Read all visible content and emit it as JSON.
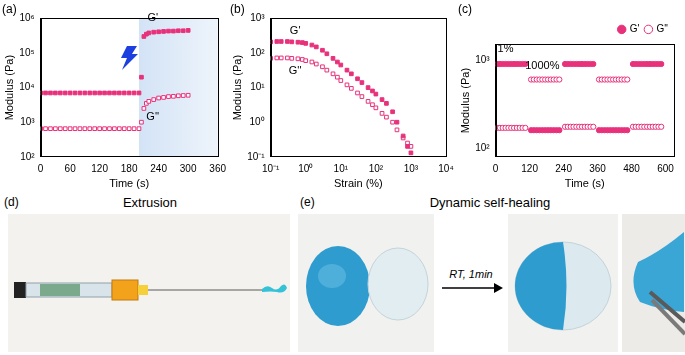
{
  "chart_data": [
    {
      "type": "scatter",
      "title": "(a)",
      "x_label": "Time (s)",
      "y_label": "Modulus (Pa)",
      "log": "y",
      "grid": false,
      "xlim": [
        0,
        360
      ],
      "xticks": [
        0,
        60,
        120,
        180,
        240,
        300,
        360
      ],
      "ylim": [
        100,
        1000000
      ],
      "yticks": [
        {
          "value": 100,
          "label": "10²"
        },
        {
          "value": 1000,
          "label": "10³"
        },
        {
          "value": 10000,
          "label": "10⁴"
        },
        {
          "value": 100000,
          "label": "10⁵"
        },
        {
          "value": 1000000,
          "label": "10⁶"
        }
      ],
      "highlight": {
        "x": [
          200,
          360
        ],
        "color": "#d3e3f6"
      },
      "x": [
        0,
        10,
        20,
        30,
        40,
        50,
        60,
        70,
        80,
        90,
        100,
        110,
        120,
        130,
        140,
        150,
        160,
        170,
        180,
        190,
        200,
        205,
        210,
        215,
        220,
        230,
        240,
        250,
        260,
        270,
        280,
        290,
        300
      ],
      "series": [
        {
          "name": "G'",
          "color": "#e8317b",
          "marker": "square",
          "label_at": [
            228,
            700000
          ],
          "values": [
            7000,
            7000,
            7000,
            7000,
            7000,
            7000,
            7000,
            7000,
            7000,
            7000,
            7000,
            7000,
            7000,
            7000,
            7000,
            7000,
            7000,
            7000,
            7000,
            7000,
            7000,
            20000,
            300000,
            350000,
            380000,
            400000,
            410000,
            420000,
            430000,
            430000,
            440000,
            440000,
            450000
          ]
        },
        {
          "name": "G''",
          "color": "#e8317b",
          "marker": "square-open",
          "label_at": [
            228,
            2000
          ],
          "values": [
            650,
            650,
            650,
            650,
            650,
            650,
            650,
            650,
            650,
            650,
            650,
            650,
            650,
            650,
            650,
            650,
            650,
            650,
            650,
            650,
            650,
            1000,
            2500,
            3500,
            4000,
            4500,
            5000,
            5200,
            5500,
            5600,
            5800,
            5900,
            6000
          ]
        }
      ]
    },
    {
      "type": "scatter",
      "title": "(b)",
      "x_label": "Strain (%)",
      "y_label": "Modulus (Pa)",
      "log": true,
      "grid": false,
      "xlim": [
        0.1,
        10000
      ],
      "xticks": [
        {
          "value": 0.1,
          "label": "10⁻¹"
        },
        {
          "value": 1,
          "label": "10⁰"
        },
        {
          "value": 10,
          "label": "10¹"
        },
        {
          "value": 100,
          "label": "10²"
        },
        {
          "value": 1000,
          "label": "10³"
        },
        {
          "value": 10000,
          "label": "10⁴"
        }
      ],
      "ylim": [
        0.1,
        1000
      ],
      "yticks": [
        {
          "value": 0.1,
          "label": "10⁻¹"
        },
        {
          "value": 1,
          "label": "10⁰"
        },
        {
          "value": 10,
          "label": "10¹"
        },
        {
          "value": 100,
          "label": "10²"
        },
        {
          "value": 1000,
          "label": "10³"
        }
      ],
      "x": [
        0.1,
        0.15,
        0.2,
        0.3,
        0.4,
        0.6,
        0.8,
        1,
        1.5,
        2,
        3,
        4,
        6,
        8,
        10,
        15,
        20,
        30,
        40,
        60,
        80,
        100,
        150,
        200,
        300,
        400,
        600,
        800,
        1000
      ],
      "series": [
        {
          "name": "G'",
          "color": "#e8317b",
          "marker": "square",
          "label_at": [
            0.5,
            300
          ],
          "values": [
            210,
            215,
            215,
            215,
            210,
            205,
            200,
            190,
            170,
            150,
            120,
            95,
            70,
            55,
            45,
            32,
            25,
            18,
            14,
            10,
            8,
            6.5,
            4.5,
            3.5,
            2,
            1,
            0.4,
            0.2,
            0.13
          ]
        },
        {
          "name": "G''",
          "color": "#e8317b",
          "marker": "square-open",
          "label_at": [
            0.5,
            45
          ],
          "values": [
            70,
            72,
            72,
            72,
            70,
            68,
            65,
            60,
            55,
            48,
            40,
            32,
            25,
            20,
            16,
            12,
            9.5,
            7,
            5.5,
            4,
            3.2,
            2.6,
            1.8,
            1.4,
            1,
            0.6,
            0.35,
            0.25,
            0.2
          ]
        }
      ]
    },
    {
      "type": "scatter",
      "title": "(c)",
      "x_label": "Time (s)",
      "y_label": "Modulus (Pa)",
      "log": "y",
      "grid": false,
      "legend": "top-right",
      "xlim": [
        0,
        630
      ],
      "xticks": [
        0,
        120,
        240,
        360,
        480,
        600
      ],
      "ylim": [
        80,
        1500
      ],
      "yticks": [
        {
          "value": 100,
          "label": "10²"
        },
        {
          "value": 1000,
          "label": "10³"
        }
      ],
      "annotations": [
        {
          "text": "1%",
          "x": 35,
          "y": 1150
        },
        {
          "text": "1000%",
          "x": 165,
          "y": 740
        }
      ],
      "x": [
        5,
        15,
        25,
        35,
        45,
        55,
        65,
        75,
        85,
        95,
        105,
        125,
        135,
        145,
        155,
        165,
        175,
        185,
        195,
        205,
        215,
        225,
        245,
        255,
        265,
        275,
        285,
        295,
        305,
        315,
        325,
        335,
        345,
        365,
        375,
        385,
        395,
        405,
        415,
        425,
        435,
        445,
        455,
        465,
        485,
        495,
        505,
        515,
        525,
        535,
        545,
        555,
        565,
        575,
        585
      ],
      "series": [
        {
          "name": "G'",
          "color": "#e8317b",
          "marker": "circle",
          "values": [
            900,
            900,
            900,
            900,
            900,
            900,
            900,
            900,
            900,
            900,
            900,
            160,
            160,
            160,
            160,
            160,
            160,
            160,
            160,
            160,
            160,
            160,
            900,
            900,
            900,
            900,
            900,
            900,
            900,
            900,
            900,
            900,
            900,
            160,
            160,
            160,
            160,
            160,
            160,
            160,
            160,
            160,
            160,
            160,
            900,
            900,
            900,
            900,
            900,
            900,
            900,
            900,
            900,
            900,
            900
          ]
        },
        {
          "name": "G''",
          "color": "#e8317b",
          "marker": "circle-open",
          "values": [
            170,
            170,
            170,
            170,
            170,
            170,
            170,
            170,
            170,
            170,
            170,
            600,
            600,
            600,
            600,
            600,
            600,
            600,
            600,
            600,
            600,
            600,
            175,
            175,
            175,
            175,
            175,
            175,
            175,
            175,
            175,
            175,
            175,
            600,
            600,
            600,
            600,
            600,
            600,
            600,
            600,
            600,
            600,
            600,
            175,
            175,
            175,
            175,
            175,
            175,
            175,
            175,
            175,
            175,
            175
          ]
        }
      ]
    }
  ],
  "panels": [
    {
      "label": "(d)",
      "title": "Extrusion"
    },
    {
      "label": "(e)",
      "title": "Dynamic self-healing",
      "arrow_text": "RT, 1min"
    }
  ]
}
